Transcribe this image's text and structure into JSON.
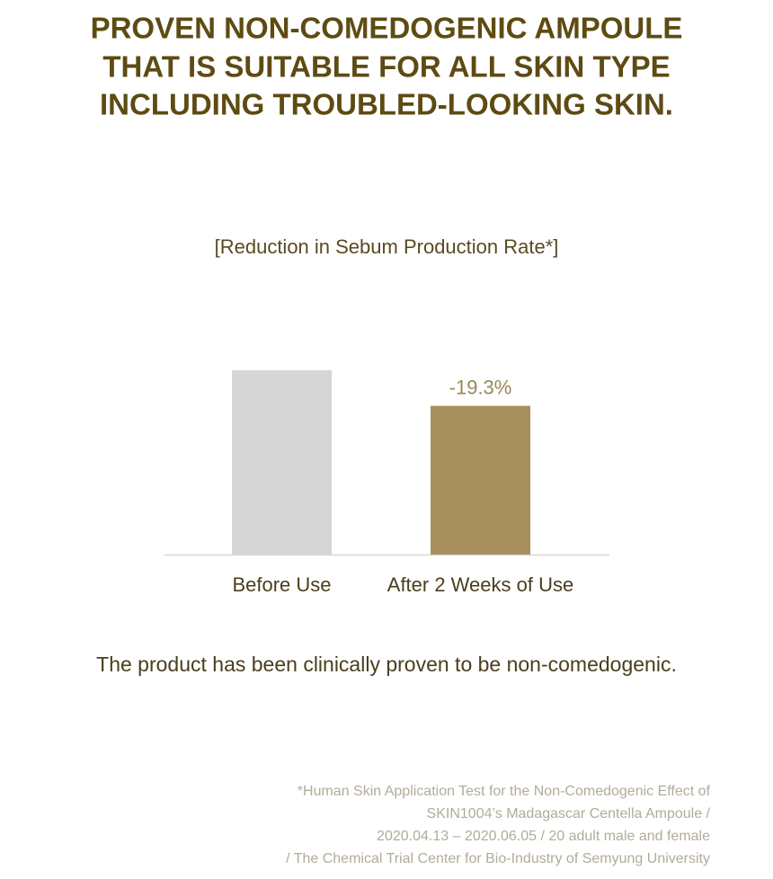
{
  "chart_data": {
    "type": "bar",
    "title": [
      "PROVEN NON-COMEDOGENIC AMPOULE",
      "THAT IS SUITABLE FOR ALL SKIN TYPE",
      "INCLUDING TROUBLED-LOOKING SKIN."
    ],
    "subtitle": "[Reduction in Sebum Production Rate*]",
    "categories": [
      "Before Use",
      "After 2 Weeks of Use"
    ],
    "values": [
      100,
      80.7
    ],
    "colors": [
      "#d6d6d6",
      "#a8905e"
    ],
    "annotation": "-19.3%",
    "conclusion": "The product has been clinically proven to be non-comedogenic.",
    "footnote": [
      "*Human Skin Application Test for the Non-Comedogenic Effect of",
      "SKIN1004’s Madagascar Centella Ampoule /",
      "2020.04.13 – 2020.06.05 / 20 adult male and female",
      "/ The Chemical Trial Center for Bio-Industry of Semyung University"
    ]
  }
}
